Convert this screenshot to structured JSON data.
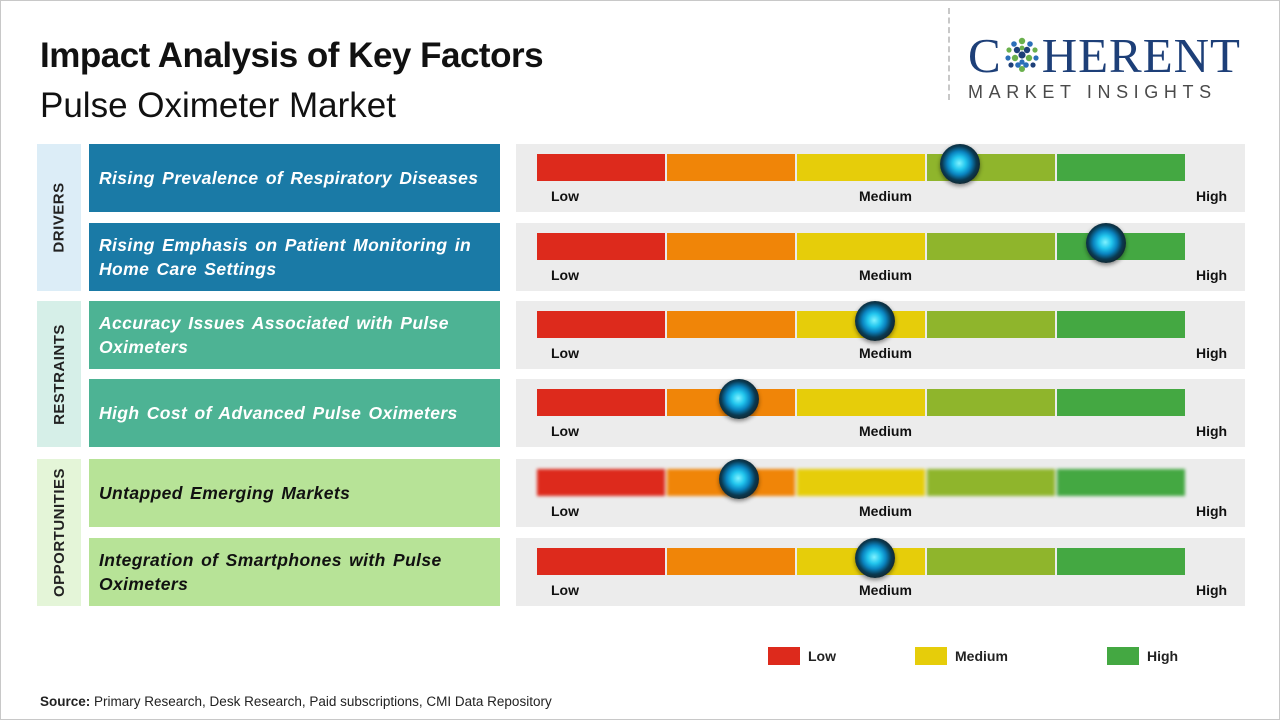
{
  "header": {
    "title": "Impact Analysis of Key Factors",
    "subtitle": "Pulse Oximeter Market"
  },
  "logo": {
    "word_left": "C",
    "word_right": "HERENT",
    "tagline": "MARKET INSIGHTS",
    "colors": {
      "navy": "#1d3f78",
      "green": "#6ab04c",
      "blue": "#2a6fb8"
    }
  },
  "scale_labels": {
    "low": "Low",
    "medium": "Medium",
    "high": "High"
  },
  "segment_colors": [
    "#dd2a1c",
    "#f08508",
    "#e6cd0a",
    "#8fb52c",
    "#44a842"
  ],
  "categories": [
    {
      "label": "DRIVERS",
      "bg": "#dcedf7"
    },
    {
      "label": "RESTRAINTS",
      "bg": "#d6efe8"
    },
    {
      "label": "OPPORTUNITIES",
      "bg": "#e4f5d8"
    }
  ],
  "legend": [
    {
      "label": "Low",
      "color": "#dd2a1c"
    },
    {
      "label": "Medium",
      "color": "#e6cd0a"
    },
    {
      "label": "High",
      "color": "#44a842"
    }
  ],
  "source": {
    "prefix": "Source:",
    "text": "Primary Research, Desk Research, Paid subscriptions, CMI Data Repository"
  },
  "chart_data": {
    "type": "gauge",
    "scale": [
      "Low",
      "Medium",
      "High"
    ],
    "range": [
      0,
      1
    ],
    "items": [
      {
        "category": "DRIVERS",
        "label": "Rising Prevalence of Respiratory Diseases",
        "impact": 0.65,
        "color": "#1a7aa6",
        "text": "light"
      },
      {
        "category": "DRIVERS",
        "label": "Rising Emphasis on Patient Monitoring in Home Care Settings",
        "impact": 0.875,
        "color": "#1a7aa6",
        "text": "light"
      },
      {
        "category": "RESTRAINTS",
        "label": "Accuracy Issues Associated with Pulse Oximeters",
        "impact": 0.52,
        "color": "#4db394",
        "text": "light"
      },
      {
        "category": "RESTRAINTS",
        "label": "High Cost of Advanced Pulse Oximeters",
        "impact": 0.31,
        "color": "#4db394",
        "text": "light"
      },
      {
        "category": "OPPORTUNITIES",
        "label": "Untapped Emerging Markets",
        "impact": 0.31,
        "color": "#b7e397",
        "text": "dark"
      },
      {
        "category": "OPPORTUNITIES",
        "label": "Integration of Smartphones with Pulse Oximeters",
        "impact": 0.52,
        "color": "#b7e397",
        "text": "dark"
      }
    ]
  }
}
